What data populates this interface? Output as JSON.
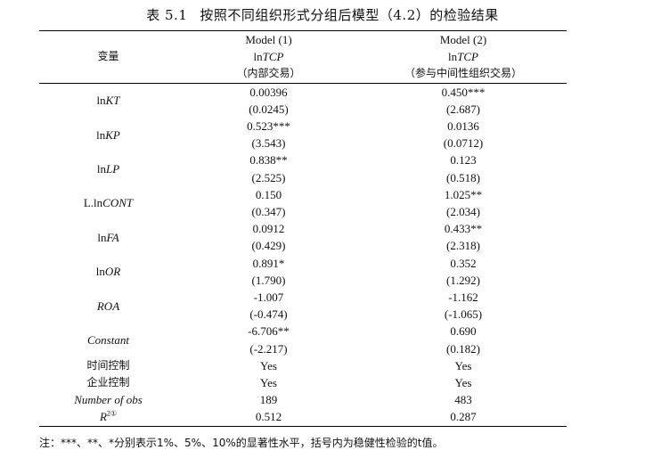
{
  "title": {
    "number": "表 5.1",
    "text": "按照不同组织形式分组后模型（4.2）的检验结果"
  },
  "header": {
    "var_label": "变量",
    "col1": {
      "model": "Model (1)",
      "dep_prefix": "ln",
      "dep_italic": "TCP",
      "sub": "（内部交易）"
    },
    "col2": {
      "model": "Model (2)",
      "dep_prefix": "ln",
      "dep_italic": "TCP",
      "sub": "（参与中间性组织交易）"
    }
  },
  "rows": [
    {
      "prefix": "ln",
      "italic": "KT",
      "m1": "0.00396",
      "m1_se": "(0.0245)",
      "m2": "0.450***",
      "m2_se": "(2.687)"
    },
    {
      "prefix": "ln",
      "italic": "KP",
      "m1": "0.523***",
      "m1_se": "(3.543)",
      "m2": "0.0136",
      "m2_se": "(0.0712)"
    },
    {
      "prefix": "ln",
      "italic": "LP",
      "m1": "0.838**",
      "m1_se": "(2.525)",
      "m2": "0.123",
      "m2_se": "(0.518)"
    },
    {
      "prefix": "L.ln",
      "italic": "CONT",
      "m1": "0.150",
      "m1_se": "(0.347)",
      "m2": "1.025**",
      "m2_se": "(2.034)"
    },
    {
      "prefix": "ln",
      "italic": "FA",
      "m1": "0.0912",
      "m1_se": "(0.429)",
      "m2": "0.433**",
      "m2_se": "(2.318)"
    },
    {
      "prefix": "ln",
      "italic": "OR",
      "m1": "0.891*",
      "m1_se": "(1.790)",
      "m2": "0.352",
      "m2_se": "(1.292)"
    },
    {
      "prefix": "",
      "italic": "ROA",
      "m1": "-1.007",
      "m1_se": "(-0.474)",
      "m2": "-1.162",
      "m2_se": "(-1.065)"
    },
    {
      "prefix": "",
      "italic": "Constant",
      "m1": "-6.706**",
      "m1_se": "(-2.217)",
      "m2": "0.690",
      "m2_se": "(0.182)"
    }
  ],
  "controls": [
    {
      "label": "时间控制",
      "m1": "Yes",
      "m2": "Yes"
    },
    {
      "label": "企业控制",
      "m1": "Yes",
      "m2": "Yes"
    }
  ],
  "obs": {
    "label": "Number of obs",
    "m1": "189",
    "m2": "483"
  },
  "r2": {
    "label": "R",
    "sup": "2①",
    "m1": "0.512",
    "m2": "0.287"
  },
  "note": "注：***、**、*分别表示1%、5%、10%的显著性水平，括号内为稳健性检验的t值。"
}
